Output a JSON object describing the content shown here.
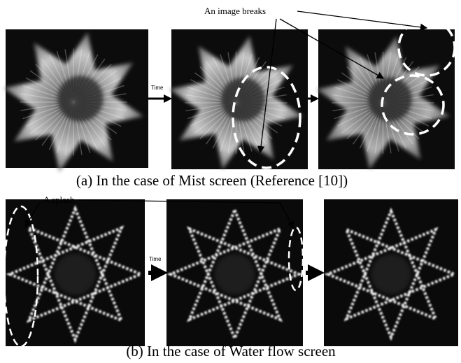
{
  "figure": {
    "top": {
      "annotation": "An image breaks",
      "time_label": "Time",
      "caption": "(a) In the case of Mist screen (Reference [10])"
    },
    "bottom": {
      "annotation": "A splash",
      "time_label": "Time",
      "caption": "(b) In the case of Water flow screen"
    }
  }
}
